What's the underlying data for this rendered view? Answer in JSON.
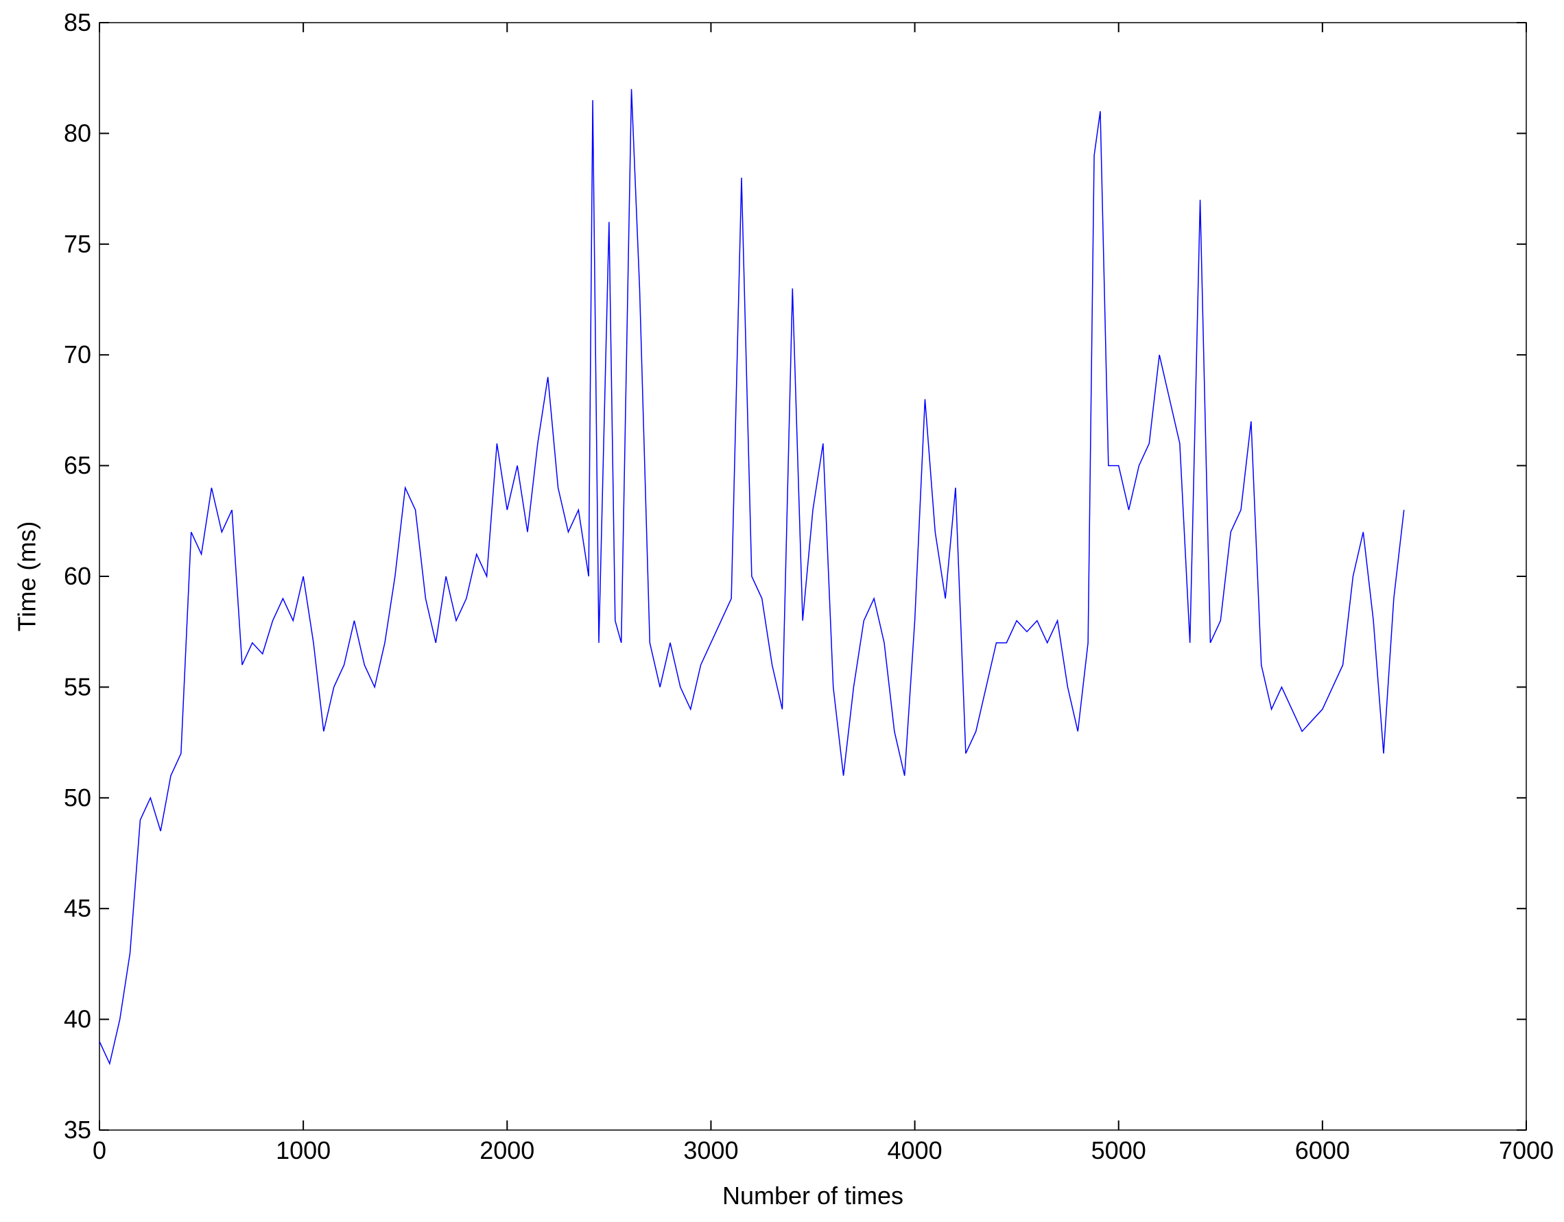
{
  "chart_data": {
    "type": "line",
    "xlabel": "Number of times",
    "ylabel": "Time (ms)",
    "x": [
      0,
      50,
      100,
      150,
      200,
      250,
      300,
      350,
      400,
      450,
      500,
      550,
      600,
      650,
      700,
      750,
      800,
      850,
      900,
      950,
      1000,
      1050,
      1100,
      1150,
      1200,
      1250,
      1300,
      1350,
      1400,
      1450,
      1500,
      1550,
      1600,
      1650,
      1700,
      1750,
      1800,
      1850,
      1900,
      1950,
      2000,
      2050,
      2100,
      2150,
      2200,
      2250,
      2300,
      2350,
      2400,
      2420,
      2450,
      2500,
      2530,
      2560,
      2610,
      2650,
      2700,
      2750,
      2800,
      2850,
      2900,
      2950,
      3000,
      3050,
      3100,
      3150,
      3200,
      3250,
      3300,
      3350,
      3400,
      3450,
      3500,
      3550,
      3600,
      3650,
      3700,
      3750,
      3800,
      3850,
      3900,
      3950,
      4000,
      4050,
      4100,
      4150,
      4200,
      4250,
      4300,
      4350,
      4400,
      4450,
      4500,
      4550,
      4600,
      4650,
      4700,
      4750,
      4800,
      4850,
      4880,
      4910,
      4950,
      5000,
      5050,
      5100,
      5150,
      5200,
      5250,
      5300,
      5350,
      5400,
      5450,
      5500,
      5550,
      5600,
      5650,
      5700,
      5750,
      5800,
      5850,
      5900,
      5950,
      6000,
      6050,
      6100,
      6150,
      6200,
      6250,
      6300,
      6350,
      6400
    ],
    "series": [
      {
        "name": "Time",
        "color": "#0000ff",
        "values": [
          39,
          38,
          40,
          43,
          49,
          50,
          48.5,
          51,
          52,
          62,
          61,
          64,
          62,
          63,
          56,
          57,
          56.5,
          58,
          59,
          58,
          60,
          57,
          53,
          55,
          56,
          58,
          56,
          55,
          57,
          60,
          64,
          63,
          59,
          57,
          60,
          58,
          59,
          61,
          60,
          66,
          63,
          65,
          62,
          66,
          69,
          64,
          62,
          63,
          60,
          81.5,
          57,
          76,
          58,
          57,
          82,
          73,
          57,
          55,
          57,
          55,
          54,
          56,
          57,
          58,
          59,
          78,
          60,
          59,
          56,
          54,
          73,
          58,
          63,
          66,
          55,
          51,
          55,
          58,
          59,
          57,
          53,
          51,
          58,
          68,
          62,
          59,
          64,
          52,
          53,
          55,
          57,
          57,
          58,
          57.5,
          58,
          57,
          58,
          55,
          53,
          57,
          79,
          81,
          65,
          65,
          63,
          65,
          66,
          70,
          68,
          66,
          57,
          77,
          57,
          58,
          62,
          63,
          67,
          56,
          54,
          55,
          54,
          53,
          53.5,
          54,
          55,
          56,
          60,
          62,
          58,
          52,
          59,
          63
        ]
      }
    ],
    "xlim": [
      0,
      7000
    ],
    "xticks": [
      0,
      1000,
      2000,
      3000,
      4000,
      5000,
      6000,
      7000
    ],
    "ylim": [
      35,
      85
    ],
    "yticks": [
      35,
      40,
      45,
      50,
      55,
      60,
      65,
      70,
      75,
      80,
      85
    ],
    "grid": false
  }
}
